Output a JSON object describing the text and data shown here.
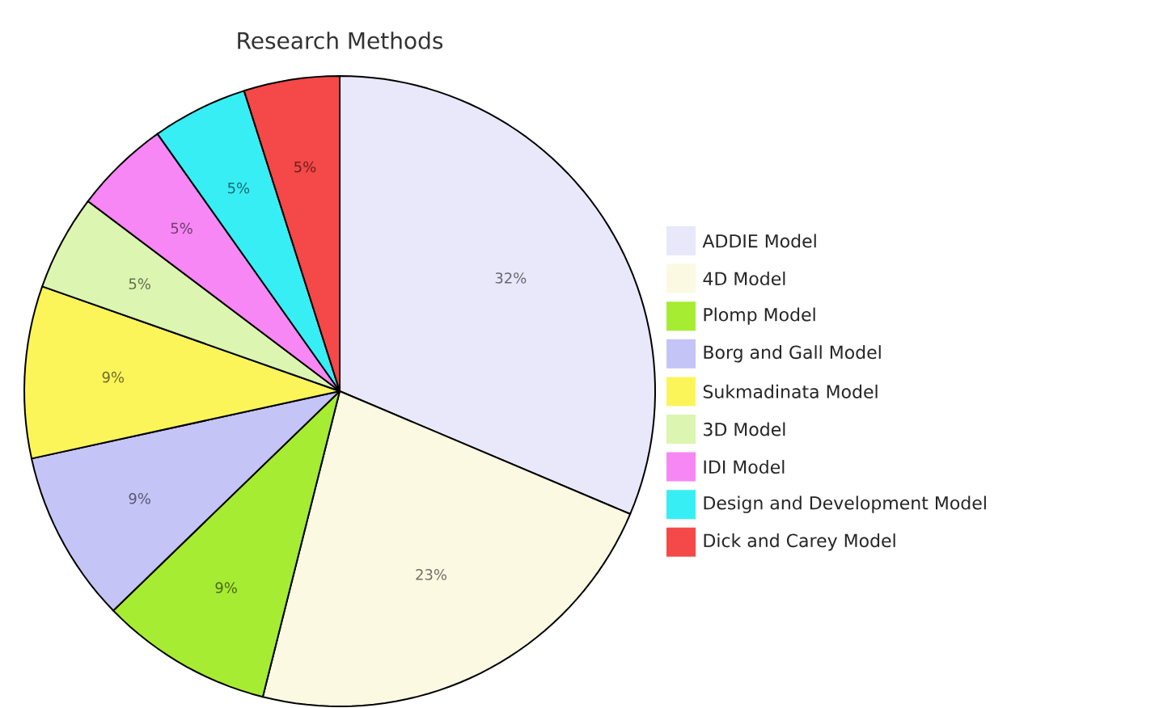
{
  "chart_data": {
    "type": "pie",
    "title": "Research Methods",
    "categories": [
      "ADDIE Model",
      "4D Model",
      "Plomp Model",
      "Borg and Gall Model",
      "Sukmadinata Model",
      "3D Model",
      "IDI Model",
      "Design and Development Model",
      "Dick and Carey Model"
    ],
    "values": [
      32,
      23,
      9,
      9,
      9,
      5,
      5,
      5,
      5
    ],
    "value_labels": [
      "32%",
      "23%",
      "9%",
      "9%",
      "9%",
      "5%",
      "5%",
      "5%",
      "5%"
    ],
    "colors": [
      "#e8e8fa",
      "#fcf9e3",
      "#a6ec33",
      "#c4c4f7",
      "#fbf55a",
      "#dcf5b0",
      "#f787f5",
      "#38eef5",
      "#f54848"
    ],
    "legend": "right"
  }
}
